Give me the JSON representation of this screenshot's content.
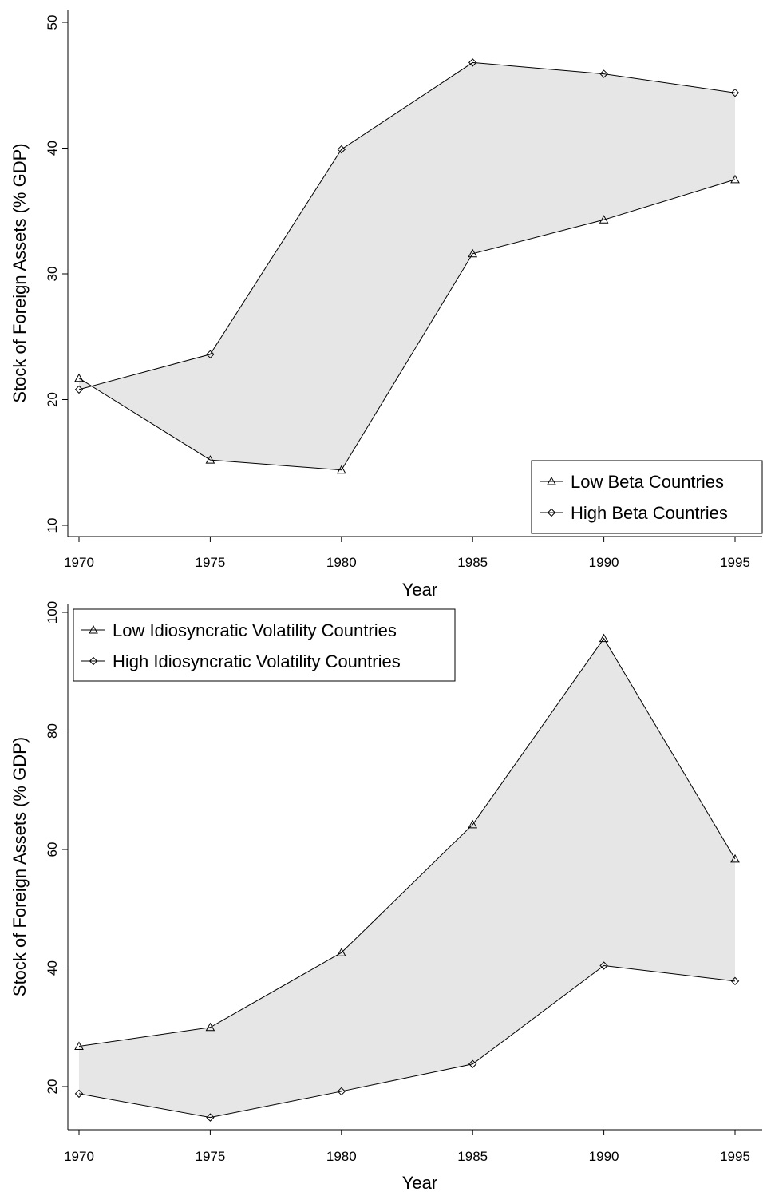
{
  "chart_data": [
    {
      "type": "line",
      "xlabel": "Year",
      "ylabel": "Stock of Foreign Assets (% GDP)",
      "x": [
        1970,
        1975,
        1980,
        1985,
        1990,
        1995
      ],
      "xticks": [
        "1970",
        "1975",
        "1980",
        "1985",
        "1990",
        "1995"
      ],
      "yticks": [
        "10",
        "20",
        "30",
        "40",
        "50"
      ],
      "xlim": [
        1970,
        1995
      ],
      "ylim": [
        10,
        50
      ],
      "shaded_between_series": true,
      "grid": false,
      "legend_position": "bottom-right",
      "series": [
        {
          "name": "Low Beta Countries",
          "marker": "triangle",
          "values": [
            21.7,
            15.2,
            14.4,
            31.6,
            34.3,
            37.5
          ]
        },
        {
          "name": "High Beta Countries",
          "marker": "diamond",
          "values": [
            20.8,
            23.6,
            39.9,
            46.8,
            45.9,
            44.4
          ]
        }
      ]
    },
    {
      "type": "line",
      "xlabel": "Year",
      "ylabel": "Stock of Foreign Assets (% GDP)",
      "x": [
        1970,
        1975,
        1980,
        1985,
        1990,
        1995
      ],
      "xticks": [
        "1970",
        "1975",
        "1980",
        "1985",
        "1990",
        "1995"
      ],
      "yticks": [
        "20",
        "40",
        "60",
        "80",
        "100"
      ],
      "xlim": [
        1970,
        1995
      ],
      "ylim": [
        20,
        100
      ],
      "shaded_between_series": true,
      "grid": false,
      "legend_position": "top-left",
      "series": [
        {
          "name": "Low Idiosyncratic Volatility Countries",
          "marker": "triangle",
          "values": [
            26.8,
            30.0,
            42.6,
            64.2,
            95.6,
            58.4
          ]
        },
        {
          "name": "High Idiosyncratic Volatility Countries",
          "marker": "diamond",
          "values": [
            18.8,
            14.8,
            19.2,
            23.8,
            40.4,
            37.8
          ]
        }
      ]
    }
  ]
}
